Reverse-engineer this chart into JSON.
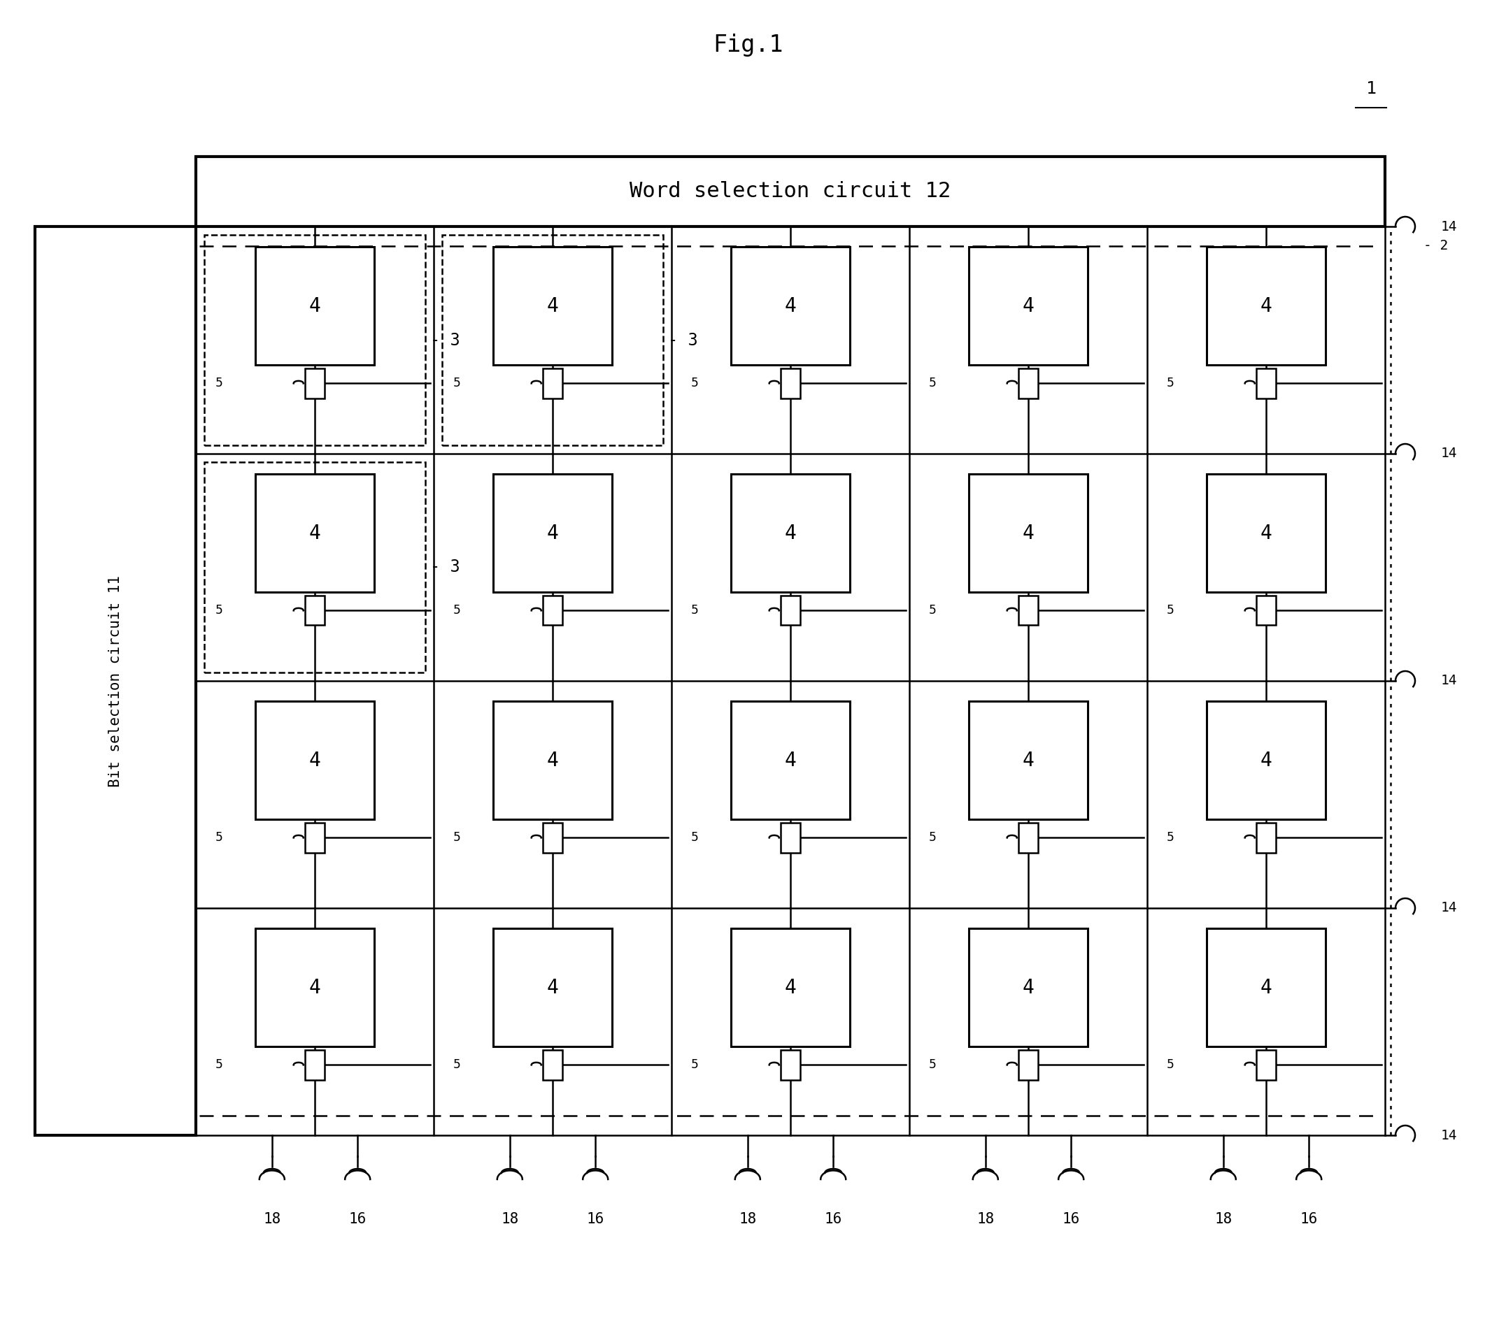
{
  "title": "Fig.1",
  "background": "#ffffff",
  "fig_width": 21.53,
  "fig_height": 19.04,
  "word_circuit_label": "Word selection circuit 12",
  "bit_circuit_label": "Bit selection circuit 11",
  "label_1": "1",
  "label_2": "2",
  "label_3": "3",
  "label_4": "4",
  "label_5": "5",
  "label_14": "14",
  "label_16": "16",
  "label_18": "18",
  "n_cols": 5,
  "n_rows": 4
}
